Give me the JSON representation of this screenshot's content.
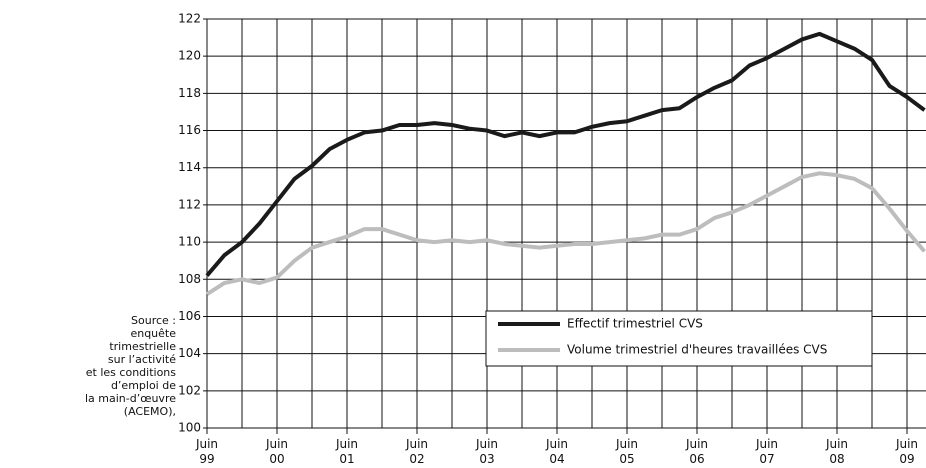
{
  "chart_data": {
    "type": "line",
    "categories": [
      "Juin\n99",
      null,
      null,
      null,
      "Juin\n00",
      null,
      null,
      null,
      "Juin\n01",
      null,
      null,
      null,
      "Juin\n02",
      null,
      null,
      null,
      "Juin\n03",
      null,
      null,
      null,
      "Juin\n04",
      null,
      null,
      null,
      "Juin\n05",
      null,
      null,
      null,
      "Juin\n06",
      null,
      null,
      null,
      "Juin\n07",
      null,
      null,
      null,
      "Juin\n08",
      null,
      null,
      null,
      "Juin\n09",
      null
    ],
    "series": [
      {
        "name": "Effectif trimestriel CVS",
        "color": "#1a1a1a",
        "values": [
          108.2,
          109.3,
          110.0,
          111.0,
          112.2,
          113.4,
          114.1,
          115.0,
          115.5,
          115.9,
          116.0,
          116.3,
          116.3,
          116.4,
          116.3,
          116.1,
          116.0,
          115.7,
          115.9,
          115.7,
          115.9,
          115.9,
          116.2,
          116.4,
          116.5,
          116.8,
          117.1,
          117.2,
          117.8,
          118.3,
          118.7,
          119.5,
          119.9,
          120.4,
          120.9,
          121.2,
          120.8,
          120.4,
          119.8,
          118.4,
          117.8,
          117.1
        ]
      },
      {
        "name": "Volume trimestriel d'heures travaillées CVS",
        "color": "#bdbdbd",
        "values": [
          107.2,
          107.8,
          108.0,
          107.8,
          108.1,
          109.0,
          109.7,
          110.0,
          110.3,
          110.7,
          110.7,
          110.4,
          110.1,
          110.0,
          110.1,
          110.0,
          110.1,
          109.9,
          109.8,
          109.7,
          109.8,
          109.9,
          109.9,
          110.0,
          110.1,
          110.2,
          110.4,
          110.4,
          110.7,
          111.3,
          111.6,
          112.0,
          112.5,
          113.0,
          113.5,
          113.7,
          113.6,
          113.4,
          112.9,
          111.8,
          110.6,
          109.5
        ]
      }
    ],
    "ylim": [
      100,
      122
    ],
    "yticks": [
      100,
      102,
      104,
      106,
      108,
      110,
      112,
      114,
      116,
      118,
      120,
      122
    ],
    "grid": true,
    "source": [
      "Source :",
      "enquête",
      "trimestrielle",
      "sur l’activité",
      "et les conditions",
      "d’emploi de",
      "la main-d’œuvre",
      "(ACEMO),"
    ]
  }
}
